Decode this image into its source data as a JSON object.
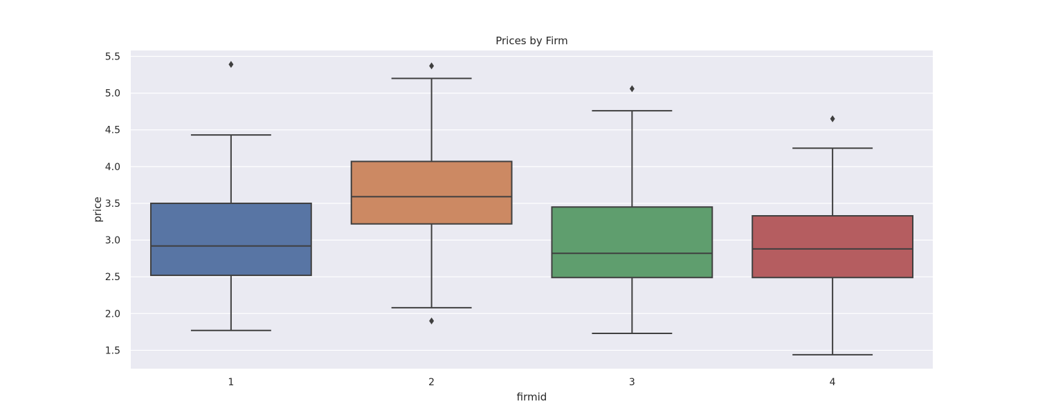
{
  "chart_data": {
    "type": "box",
    "title": "Prices by Firm",
    "xlabel": "firmid",
    "ylabel": "price",
    "ylim": [
      1.25,
      5.58
    ],
    "yticks": [
      1.5,
      2.0,
      2.5,
      3.0,
      3.5,
      4.0,
      4.5,
      5.0,
      5.5
    ],
    "ytick_labels": [
      "1.5",
      "2.0",
      "2.5",
      "3.0",
      "3.5",
      "4.0",
      "4.5",
      "5.0",
      "5.5"
    ],
    "grid": true,
    "categories": [
      "1",
      "2",
      "3",
      "4"
    ],
    "boxes": [
      {
        "category": "1",
        "whisker_low": 1.77,
        "q1": 2.52,
        "median": 2.92,
        "q3": 3.5,
        "whisker_high": 4.43,
        "outliers": [
          5.39
        ],
        "color": "#5875a4"
      },
      {
        "category": "2",
        "whisker_low": 2.08,
        "q1": 3.22,
        "median": 3.59,
        "q3": 4.07,
        "whisker_high": 5.2,
        "outliers": [
          5.37,
          1.9
        ],
        "color": "#cc8963"
      },
      {
        "category": "3",
        "whisker_low": 1.73,
        "q1": 2.49,
        "median": 2.82,
        "q3": 3.45,
        "whisker_high": 4.76,
        "outliers": [
          5.06
        ],
        "color": "#5f9e6e"
      },
      {
        "category": "4",
        "whisker_low": 1.44,
        "q1": 2.49,
        "median": 2.88,
        "q3": 3.33,
        "whisker_high": 4.25,
        "outliers": [
          4.65
        ],
        "color": "#b55d60"
      }
    ]
  }
}
